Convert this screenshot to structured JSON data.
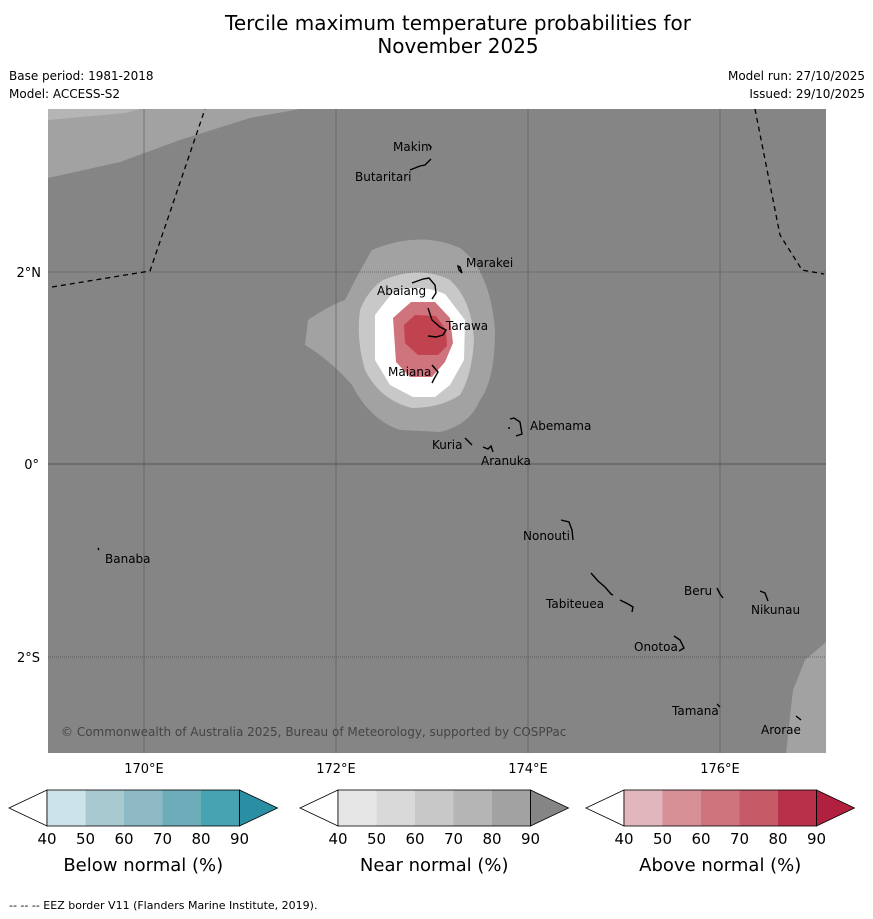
{
  "title": {
    "line1": "Tercile maximum temperature probabilities for",
    "line2": "November 2025"
  },
  "meta": {
    "base_period": "Base period: 1981-2018",
    "model": "Model: ACCESS-S2",
    "model_run": "Model run: 27/10/2025",
    "issued": "Issued: 29/10/2025"
  },
  "axes": {
    "lon_labels": [
      "170°E",
      "172°E",
      "174°E",
      "176°E"
    ],
    "lat_labels": [
      "2°N",
      "0°",
      "2°S"
    ]
  },
  "places": [
    {
      "name": "Makin"
    },
    {
      "name": "Butaritari"
    },
    {
      "name": "Marakei"
    },
    {
      "name": "Abaiang"
    },
    {
      "name": "Tarawa"
    },
    {
      "name": "Maiana"
    },
    {
      "name": "Abemama"
    },
    {
      "name": "Kuria"
    },
    {
      "name": "Aranuka"
    },
    {
      "name": "Nonouti"
    },
    {
      "name": "Banaba"
    },
    {
      "name": "Beru"
    },
    {
      "name": "Tabiteuea"
    },
    {
      "name": "Nikunau"
    },
    {
      "name": "Onotoa"
    },
    {
      "name": "Tamana"
    },
    {
      "name": "Arorae"
    }
  ],
  "copyright": "© Commonwealth of Australia 2025, Bureau of Meteorology, supported by COSPPac",
  "colorbars": [
    {
      "label": "Below normal (%)",
      "ticks": [
        "40",
        "50",
        "60",
        "70",
        "80",
        "90"
      ],
      "colors": [
        "#ffffff",
        "#cde3ea",
        "#a9c9d1",
        "#8dbac5",
        "#6cadb9",
        "#47a2b1",
        "#2a8fa3"
      ]
    },
    {
      "label": "Near normal (%)",
      "ticks": [
        "40",
        "50",
        "60",
        "70",
        "80",
        "90"
      ],
      "colors": [
        "#ffffff",
        "#e6e6e6",
        "#d9d9d9",
        "#c8c8c8",
        "#b5b5b5",
        "#a2a2a2",
        "#858585"
      ]
    },
    {
      "label": "Above normal (%)",
      "ticks": [
        "40",
        "50",
        "60",
        "70",
        "80",
        "90"
      ],
      "colors": [
        "#ffffff",
        "#e2b6bd",
        "#d89097",
        "#cf747c",
        "#c65b67",
        "#b9304a",
        "#b2203f"
      ]
    }
  ],
  "footnote": "--  --  -- EEZ border V11 (Flanders Marine Institute, 2019).",
  "map_colors": {
    "sea": "#858585",
    "near_light": "#a2a2a2",
    "near_mid": "#c8c8c8",
    "white": "#ffffff",
    "above_light": "#cf747c",
    "above_dark": "#c0434f"
  }
}
